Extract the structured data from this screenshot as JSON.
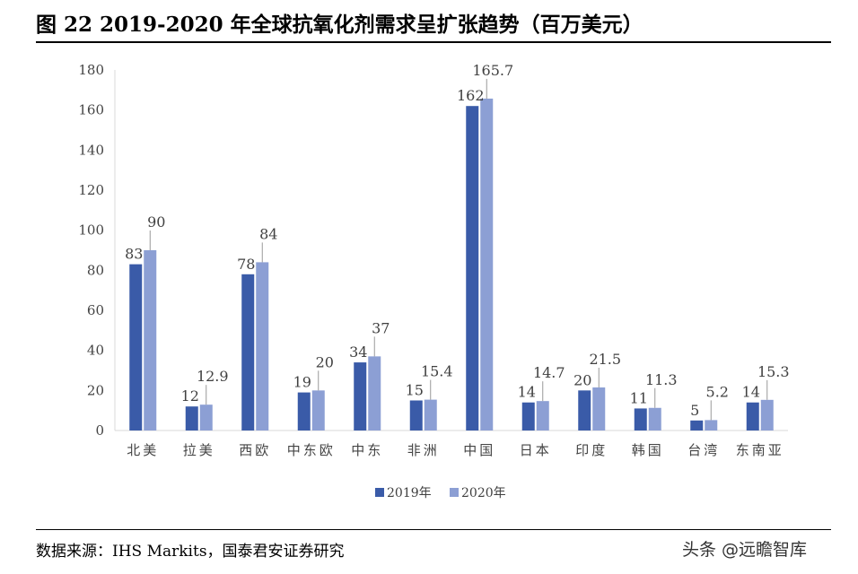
{
  "title": "图 22 2019-2020 年全球抗氧化剂需求呈扩张趋势（百万美元）",
  "source": "数据来源：IHS Markits，国泰君安证券研究",
  "watermark": "头条 @远瞻智库",
  "chart_data": {
    "type": "bar",
    "categories": [
      "北美",
      "拉美",
      "西欧",
      "中东欧",
      "中东",
      "非洲",
      "中国",
      "日本",
      "印度",
      "韩国",
      "台湾",
      "东南亚"
    ],
    "series": [
      {
        "name": "2019年",
        "color": "#3A5BA8",
        "values": [
          83,
          12,
          78,
          19,
          34,
          15,
          162,
          14,
          20,
          11,
          5,
          14
        ]
      },
      {
        "name": "2020年",
        "color": "#8C9FD4",
        "values": [
          90,
          12.9,
          84,
          20,
          37,
          15.4,
          165.7,
          14.7,
          21.5,
          11.3,
          5.2,
          15.3
        ]
      }
    ],
    "ylim": [
      0,
      180
    ],
    "yticks": [
      0,
      20,
      40,
      60,
      80,
      100,
      120,
      140,
      160,
      180
    ],
    "grid": false,
    "legend": "bottom"
  }
}
